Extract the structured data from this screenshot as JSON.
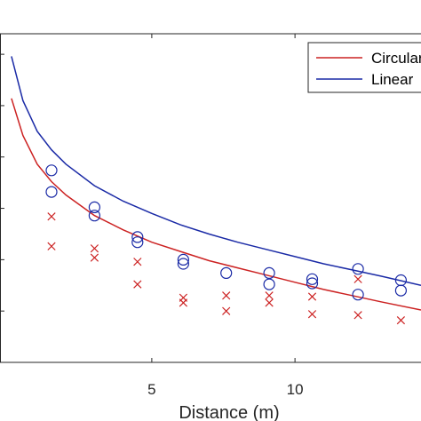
{
  "chart_data": {
    "type": "scatter",
    "xlabel": "Distance (m)",
    "ylabel": "",
    "title": "",
    "xlim": [
      -0.3,
      14.4
    ],
    "ylim": [
      0,
      32
    ],
    "x_ticks": [
      5,
      10
    ],
    "x_tick_labels": [
      "5",
      "10"
    ],
    "y_ticks": [
      5,
      10,
      15,
      20,
      25,
      30
    ],
    "grid": false,
    "legend_placement": "top-right",
    "series": [
      {
        "name": "Circular",
        "color": "#cc2222",
        "kind": "line",
        "x": [
          0.1,
          0.5,
          1,
          1.5,
          2,
          3,
          4,
          5,
          6,
          7,
          8,
          9,
          10,
          11,
          12,
          13,
          14.4
        ],
        "y": [
          25.7,
          22.1,
          19.3,
          17.6,
          16.3,
          14.3,
          12.9,
          11.7,
          10.8,
          9.9,
          9.2,
          8.5,
          7.8,
          7.1,
          6.5,
          5.9,
          5.1
        ]
      },
      {
        "name": "Linear",
        "color": "#1a2aa6",
        "kind": "line",
        "x": [
          0.1,
          0.5,
          1,
          1.5,
          2,
          3,
          4,
          5,
          6,
          7,
          8,
          9,
          10,
          11,
          12,
          13,
          14.4
        ],
        "y": [
          29.8,
          25.5,
          22.5,
          20.7,
          19.3,
          17.2,
          15.7,
          14.5,
          13.4,
          12.5,
          11.7,
          11.0,
          10.3,
          9.6,
          9.0,
          8.4,
          7.5
        ]
      },
      {
        "name": "",
        "color": "#1a2aa6",
        "kind": "markers",
        "marker": "circle",
        "x": [
          1.5,
          1.5,
          3,
          3,
          4.5,
          4.5,
          6.1,
          6.1,
          7.6,
          9.1,
          9.1,
          10.6,
          10.6,
          12.2,
          12.2,
          13.7,
          13.7
        ],
        "y": [
          18.7,
          16.6,
          15.1,
          14.3,
          12.2,
          11.7,
          10.0,
          9.6,
          8.7,
          8.7,
          7.6,
          8.1,
          7.7,
          9.1,
          6.6,
          8.0,
          7.0
        ]
      },
      {
        "name": "",
        "color": "#cc2222",
        "kind": "markers",
        "marker": "x",
        "x": [
          1.5,
          1.5,
          3,
          3,
          4.5,
          4.5,
          6.1,
          6.1,
          7.6,
          7.6,
          9.1,
          9.1,
          10.6,
          10.6,
          12.2,
          12.2,
          13.7
        ],
        "y": [
          14.2,
          11.3,
          11.1,
          10.2,
          9.8,
          7.6,
          6.3,
          5.8,
          6.5,
          5.0,
          6.5,
          5.8,
          6.4,
          4.7,
          4.6,
          8.1,
          4.1
        ]
      }
    ]
  }
}
